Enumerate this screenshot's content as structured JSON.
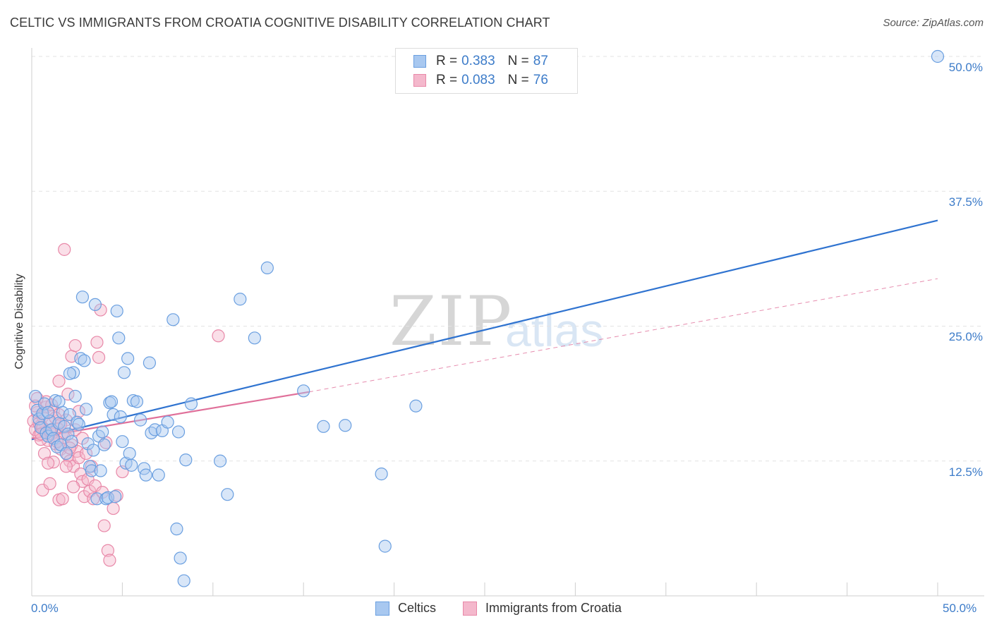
{
  "header": {
    "title": "CELTIC VS IMMIGRANTS FROM CROATIA COGNITIVE DISABILITY CORRELATION CHART",
    "source": "Source: ZipAtlas.com"
  },
  "watermark": {
    "zip": "ZIP",
    "atlas": "atlas"
  },
  "legend_top": {
    "rows": [
      {
        "r_label": "R =",
        "r_value": "0.383",
        "n_label": "N =",
        "n_value": "87"
      },
      {
        "r_label": "R =",
        "r_value": "0.083",
        "n_label": "N =",
        "n_value": "76"
      }
    ]
  },
  "legend_bottom": {
    "series1": "Celtics",
    "series2": "Immigrants from Croatia"
  },
  "colors": {
    "blue_fill": "#a8c8f0",
    "blue_stroke": "#6a9fe0",
    "blue_line": "#2f73d0",
    "pink_fill": "#f4b8cc",
    "pink_stroke": "#e888a8",
    "pink_line": "#e0709a",
    "tick_text": "#3d7cc9",
    "grid": "#e3e3e3"
  },
  "chart_data": {
    "type": "scatter",
    "title": "CELTIC VS IMMIGRANTS FROM CROATIA COGNITIVE DISABILITY CORRELATION CHART",
    "xlabel": "",
    "ylabel": "Cognitive Disability",
    "xlim": [
      0,
      50
    ],
    "ylim": [
      0,
      50
    ],
    "x_tick_labels": [
      "0.0%",
      "50.0%"
    ],
    "y_ticks": [
      12.5,
      25.0,
      37.5,
      50.0
    ],
    "y_tick_labels": [
      "12.5%",
      "25.0%",
      "37.5%",
      "50.0%"
    ],
    "grid": true,
    "legend_position": "top-center",
    "series": [
      {
        "name": "Celtics",
        "R": 0.383,
        "N": 87,
        "trend": {
          "x": [
            0,
            50
          ],
          "y": [
            14.5,
            34.8
          ],
          "style": "solid"
        },
        "points": [
          [
            0.2,
            18.5
          ],
          [
            0.3,
            17.2
          ],
          [
            0.4,
            16.4
          ],
          [
            0.5,
            15.6
          ],
          [
            0.6,
            16.9
          ],
          [
            0.7,
            17.8
          ],
          [
            0.8,
            15.1
          ],
          [
            0.9,
            14.8
          ],
          [
            1.0,
            16.2
          ],
          [
            1.1,
            15.4
          ],
          [
            1.2,
            14.6
          ],
          [
            1.3,
            18.1
          ],
          [
            1.4,
            13.8
          ],
          [
            1.5,
            16.0
          ],
          [
            1.6,
            14.0
          ],
          [
            1.7,
            17.0
          ],
          [
            1.8,
            15.7
          ],
          [
            1.9,
            13.2
          ],
          [
            2.0,
            15.0
          ],
          [
            2.1,
            16.8
          ],
          [
            2.2,
            14.3
          ],
          [
            2.3,
            20.7
          ],
          [
            2.4,
            18.5
          ],
          [
            2.5,
            16.1
          ],
          [
            2.6,
            15.9
          ],
          [
            2.7,
            22.0
          ],
          [
            2.8,
            27.7
          ],
          [
            2.9,
            21.8
          ],
          [
            3.0,
            17.3
          ],
          [
            3.1,
            14.1
          ],
          [
            3.2,
            12.0
          ],
          [
            3.3,
            11.6
          ],
          [
            3.4,
            13.5
          ],
          [
            3.5,
            27.0
          ],
          [
            3.6,
            9.0
          ],
          [
            3.7,
            14.8
          ],
          [
            3.8,
            11.6
          ],
          [
            3.9,
            15.2
          ],
          [
            4.0,
            14.0
          ],
          [
            4.1,
            9.0
          ],
          [
            4.2,
            9.1
          ],
          [
            4.3,
            17.9
          ],
          [
            4.4,
            18.0
          ],
          [
            4.5,
            16.8
          ],
          [
            4.6,
            9.2
          ],
          [
            4.7,
            26.4
          ],
          [
            4.8,
            23.9
          ],
          [
            4.9,
            16.6
          ],
          [
            5.0,
            14.3
          ],
          [
            5.1,
            20.7
          ],
          [
            5.2,
            12.3
          ],
          [
            5.3,
            22.0
          ],
          [
            5.4,
            13.2
          ],
          [
            5.5,
            12.1
          ],
          [
            5.6,
            18.1
          ],
          [
            5.8,
            18.0
          ],
          [
            6.0,
            16.3
          ],
          [
            6.2,
            11.8
          ],
          [
            6.3,
            11.2
          ],
          [
            6.5,
            21.6
          ],
          [
            6.6,
            15.1
          ],
          [
            6.8,
            15.4
          ],
          [
            7.0,
            11.2
          ],
          [
            7.2,
            15.3
          ],
          [
            7.5,
            16.1
          ],
          [
            7.8,
            25.6
          ],
          [
            8.0,
            6.2
          ],
          [
            8.1,
            15.2
          ],
          [
            8.5,
            12.6
          ],
          [
            8.8,
            17.8
          ],
          [
            10.4,
            12.5
          ],
          [
            10.8,
            9.4
          ],
          [
            11.5,
            27.5
          ],
          [
            12.3,
            23.9
          ],
          [
            13.0,
            30.4
          ],
          [
            15.0,
            19.0
          ],
          [
            16.1,
            15.7
          ],
          [
            17.3,
            15.8
          ],
          [
            19.5,
            4.6
          ],
          [
            21.2,
            17.6
          ],
          [
            8.2,
            3.5
          ],
          [
            8.4,
            1.4
          ],
          [
            19.3,
            11.3
          ],
          [
            50.0,
            50.0
          ],
          [
            1.5,
            18.0
          ],
          [
            0.9,
            17.0
          ],
          [
            2.1,
            20.6
          ]
        ]
      },
      {
        "name": "Immigrants from Croatia",
        "R": 0.083,
        "N": 76,
        "trend": {
          "x": [
            0,
            15.3
          ],
          "y": [
            14.6,
            18.9
          ],
          "style": "solid",
          "extended": {
            "x": [
              15.3,
              50
            ],
            "y": [
              18.9,
              29.4
            ],
            "style": "dashed"
          }
        },
        "points": [
          [
            0.1,
            16.2
          ],
          [
            0.2,
            15.4
          ],
          [
            0.3,
            17.0
          ],
          [
            0.4,
            14.9
          ],
          [
            0.5,
            15.8
          ],
          [
            0.6,
            16.6
          ],
          [
            0.7,
            15.2
          ],
          [
            0.8,
            17.5
          ],
          [
            0.9,
            14.4
          ],
          [
            1.0,
            16.0
          ],
          [
            1.1,
            15.0
          ],
          [
            1.2,
            17.2
          ],
          [
            1.3,
            14.1
          ],
          [
            1.4,
            15.5
          ],
          [
            1.5,
            16.8
          ],
          [
            1.6,
            13.6
          ],
          [
            1.7,
            15.1
          ],
          [
            1.8,
            14.7
          ],
          [
            1.9,
            16.3
          ],
          [
            2.0,
            13.0
          ],
          [
            2.1,
            12.5
          ],
          [
            2.2,
            14.0
          ],
          [
            2.3,
            12.0
          ],
          [
            2.4,
            15.4
          ],
          [
            2.5,
            13.4
          ],
          [
            2.6,
            12.8
          ],
          [
            2.7,
            11.3
          ],
          [
            2.8,
            10.6
          ],
          [
            2.9,
            9.2
          ],
          [
            3.0,
            13.2
          ],
          [
            3.1,
            10.8
          ],
          [
            3.2,
            9.7
          ],
          [
            3.3,
            12.0
          ],
          [
            3.4,
            9.0
          ],
          [
            3.5,
            10.2
          ],
          [
            3.6,
            23.5
          ],
          [
            3.7,
            22.1
          ],
          [
            3.8,
            26.5
          ],
          [
            3.9,
            9.6
          ],
          [
            4.0,
            6.5
          ],
          [
            4.1,
            14.2
          ],
          [
            4.2,
            4.2
          ],
          [
            4.3,
            3.3
          ],
          [
            4.5,
            8.1
          ],
          [
            4.7,
            9.3
          ],
          [
            5.0,
            11.5
          ],
          [
            0.6,
            9.8
          ],
          [
            1.0,
            10.4
          ],
          [
            1.2,
            12.4
          ],
          [
            1.5,
            8.9
          ],
          [
            1.7,
            9.0
          ],
          [
            2.0,
            18.7
          ],
          [
            2.2,
            22.2
          ],
          [
            2.4,
            23.2
          ],
          [
            2.6,
            17.1
          ],
          [
            0.8,
            18.0
          ],
          [
            1.1,
            17.7
          ],
          [
            1.3,
            16.5
          ],
          [
            1.5,
            19.9
          ],
          [
            1.6,
            15.9
          ],
          [
            0.4,
            16.0
          ],
          [
            0.5,
            14.5
          ],
          [
            0.7,
            13.2
          ],
          [
            0.9,
            12.3
          ],
          [
            1.9,
            12.0
          ],
          [
            2.1,
            13.7
          ],
          [
            2.3,
            10.1
          ],
          [
            0.3,
            18.3
          ],
          [
            0.2,
            17.6
          ],
          [
            0.6,
            15.6
          ],
          [
            1.4,
            14.3
          ],
          [
            1.8,
            32.1
          ],
          [
            10.3,
            24.1
          ],
          [
            0.5,
            15.0
          ],
          [
            2.8,
            14.6
          ],
          [
            1.0,
            15.3
          ]
        ]
      }
    ]
  }
}
